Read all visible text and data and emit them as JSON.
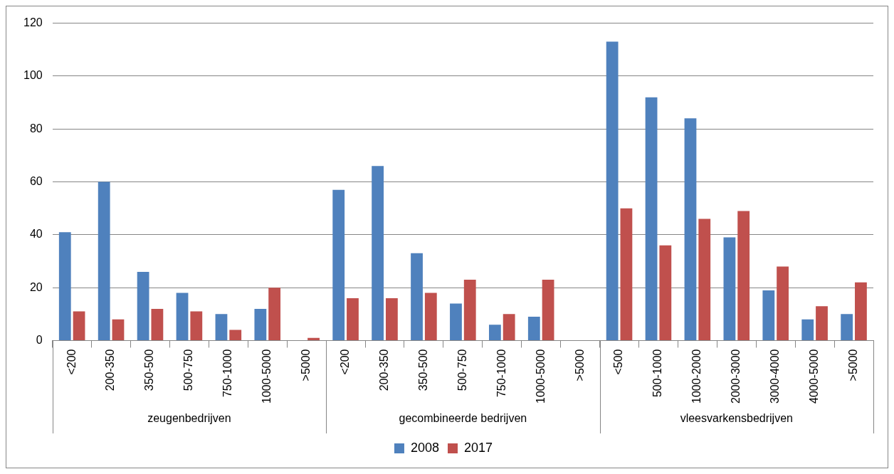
{
  "chart_data": {
    "type": "bar",
    "categories": [
      "<200",
      "200-350",
      "350-500",
      "500-750",
      "750-1000",
      "1000-5000",
      ">5000",
      "<200",
      "200-350",
      "350-500",
      "500-750",
      "750-1000",
      "1000-5000",
      ">5000",
      "<500",
      "500-1000",
      "1000-2000",
      "2000-3000",
      "3000-4000",
      "4000-5000",
      ">5000"
    ],
    "annotations": [
      "zeugenbedrijven",
      "gecombineerde bedrijven",
      "vleesvarkensbedrijven"
    ],
    "series": [
      {
        "name": "2008",
        "color": "#4f81bd",
        "values": [
          41,
          60,
          26,
          18,
          10,
          12,
          0,
          57,
          66,
          33,
          14,
          6,
          9,
          0,
          113,
          92,
          84,
          39,
          19,
          8,
          10
        ]
      },
      {
        "name": "2017",
        "color": "#c0504d",
        "values": [
          11,
          8,
          12,
          11,
          4,
          20,
          1,
          16,
          16,
          18,
          23,
          10,
          23,
          0,
          50,
          36,
          46,
          49,
          28,
          13,
          22
        ]
      }
    ],
    "ylim": [
      0,
      120
    ],
    "yticks": [
      0,
      20,
      40,
      60,
      80,
      100,
      120
    ],
    "grid": "y",
    "legend": "bottom"
  }
}
